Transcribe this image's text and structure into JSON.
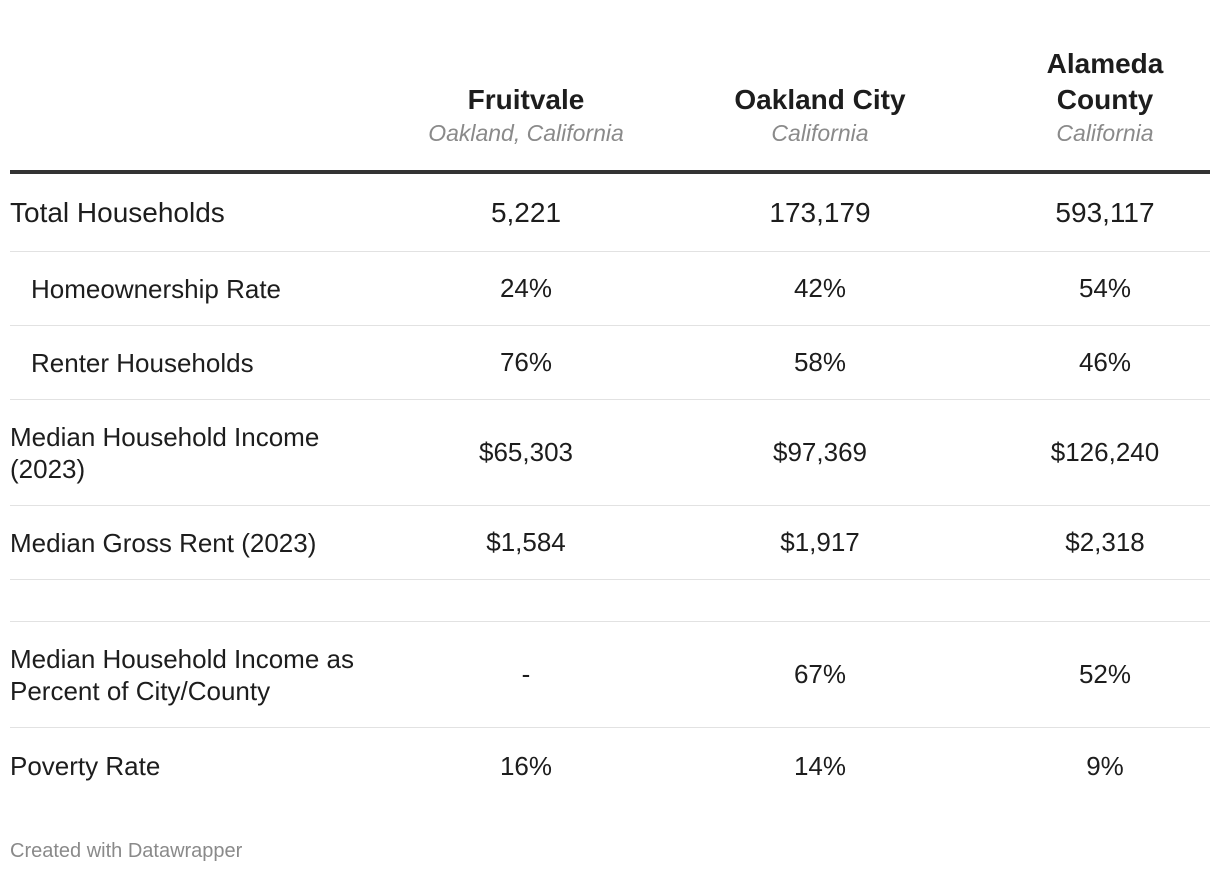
{
  "columns": [
    {
      "title": "Fruitvale",
      "subtitle": "Oakland, California"
    },
    {
      "title": "Oakland City",
      "subtitle": "California"
    },
    {
      "title": "Alameda County",
      "subtitle": "California"
    }
  ],
  "rows": [
    {
      "label": "Total Households",
      "values": [
        "5,221",
        "173,179",
        "593,117"
      ]
    },
    {
      "label": "Homeownership Rate",
      "values": [
        "24%",
        "42%",
        "54%"
      ]
    },
    {
      "label": "Renter Households",
      "values": [
        "76%",
        "58%",
        "46%"
      ]
    },
    {
      "label": "Median Household Income (2023)",
      "values": [
        "$65,303",
        "$97,369",
        "$126,240"
      ]
    },
    {
      "label": "Median Gross Rent (2023)",
      "values": [
        "$1,584",
        "$1,917",
        "$2,318"
      ]
    },
    {
      "label": "",
      "values": [
        "",
        "",
        ""
      ]
    },
    {
      "label": "Median Household Income as Percent of City/County",
      "values": [
        "-",
        "67%",
        "52%"
      ]
    },
    {
      "label": "Poverty Rate",
      "values": [
        "16%",
        "14%",
        "9%"
      ]
    }
  ],
  "footer": "Created with Datawrapper",
  "chart_data": {
    "type": "table",
    "columns": [
      "",
      "Fruitvale",
      "Oakland City",
      "Alameda County"
    ],
    "column_subtitles": [
      "",
      "Oakland, California",
      "California",
      "California"
    ],
    "rows": [
      [
        "Total Households",
        "5,221",
        "173,179",
        "593,117"
      ],
      [
        "Homeownership Rate",
        "24%",
        "42%",
        "54%"
      ],
      [
        "Renter Households",
        "76%",
        "58%",
        "46%"
      ],
      [
        "Median Household Income (2023)",
        "$65,303",
        "$97,369",
        "$126,240"
      ],
      [
        "Median Gross Rent (2023)",
        "$1,584",
        "$1,917",
        "$2,318"
      ],
      [
        "",
        "",
        "",
        ""
      ],
      [
        "Median Household Income as Percent of City/County",
        "-",
        "67%",
        "52%"
      ],
      [
        "Poverty Rate",
        "16%",
        "14%",
        "9%"
      ]
    ]
  }
}
